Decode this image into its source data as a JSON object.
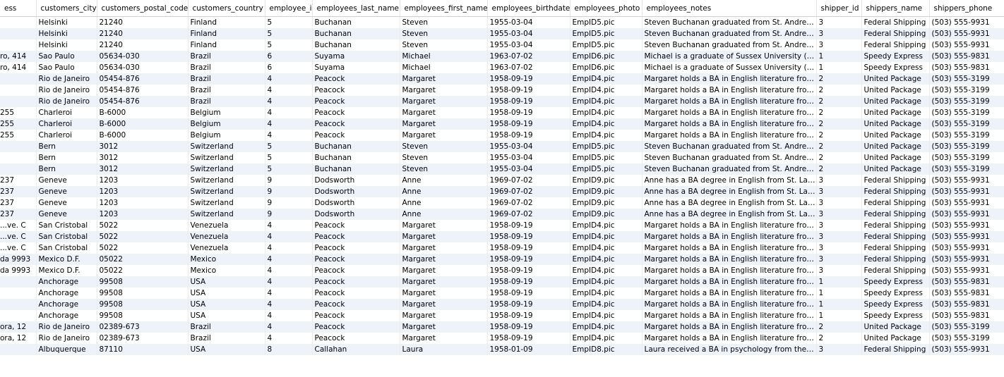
{
  "columns": [
    "ess",
    "customers_city",
    "customers_postal_code",
    "customers_country",
    "employee_id",
    "employees_last_name",
    "employees_first_name",
    "employees_birthdate",
    "employees_photo",
    "employees_notes",
    "shipper_id",
    "shippers_name",
    "shippers_phone"
  ],
  "rows": [
    [
      "",
      "Helsinki",
      "21240",
      "Finland",
      "5",
      "Buchanan",
      "Steven",
      "1955-03-04",
      "EmpID5.pic",
      "Steven Buchanan graduated from St. Andrews ...",
      "3",
      "Federal Shipping",
      "(503) 555-9931"
    ],
    [
      "",
      "Helsinki",
      "21240",
      "Finland",
      "5",
      "Buchanan",
      "Steven",
      "1955-03-04",
      "EmpID5.pic",
      "Steven Buchanan graduated from St. Andrews ...",
      "3",
      "Federal Shipping",
      "(503) 555-9931"
    ],
    [
      "",
      "Helsinki",
      "21240",
      "Finland",
      "5",
      "Buchanan",
      "Steven",
      "1955-03-04",
      "EmpID5.pic",
      "Steven Buchanan graduated from St. Andrews ...",
      "3",
      "Federal Shipping",
      "(503) 555-9931"
    ],
    [
      "ro, 414",
      "Sao Paulo",
      "05634-030",
      "Brazil",
      "6",
      "Suyama",
      "Michael",
      "1963-07-02",
      "EmpID6.pic",
      "Michael is a graduate of Sussex University (MA,...",
      "1",
      "Speedy Express",
      "(503) 555-9831"
    ],
    [
      "ro, 414",
      "Sao Paulo",
      "05634-030",
      "Brazil",
      "6",
      "Suyama",
      "Michael",
      "1963-07-02",
      "EmpID6.pic",
      "Michael is a graduate of Sussex University (MA,...",
      "1",
      "Speedy Express",
      "(503) 555-9831"
    ],
    [
      "",
      "Rio de Janeiro",
      "05454-876",
      "Brazil",
      "4",
      "Peacock",
      "Margaret",
      "1958-09-19",
      "EmpID4.pic",
      "Margaret holds a BA in English literature from C...",
      "2",
      "United Package",
      "(503) 555-3199"
    ],
    [
      "",
      "Rio de Janeiro",
      "05454-876",
      "Brazil",
      "4",
      "Peacock",
      "Margaret",
      "1958-09-19",
      "EmpID4.pic",
      "Margaret holds a BA in English literature from C...",
      "2",
      "United Package",
      "(503) 555-3199"
    ],
    [
      "",
      "Rio de Janeiro",
      "05454-876",
      "Brazil",
      "4",
      "Peacock",
      "Margaret",
      "1958-09-19",
      "EmpID4.pic",
      "Margaret holds a BA in English literature from C...",
      "2",
      "United Package",
      "(503) 555-3199"
    ],
    [
      " 255",
      "Charleroi",
      "B-6000",
      "Belgium",
      "4",
      "Peacock",
      "Margaret",
      "1958-09-19",
      "EmpID4.pic",
      "Margaret holds a BA in English literature from C...",
      "2",
      "United Package",
      "(503) 555-3199"
    ],
    [
      " 255",
      "Charleroi",
      "B-6000",
      "Belgium",
      "4",
      "Peacock",
      "Margaret",
      "1958-09-19",
      "EmpID4.pic",
      "Margaret holds a BA in English literature from C...",
      "2",
      "United Package",
      "(503) 555-3199"
    ],
    [
      " 255",
      "Charleroi",
      "B-6000",
      "Belgium",
      "4",
      "Peacock",
      "Margaret",
      "1958-09-19",
      "EmpID4.pic",
      "Margaret holds a BA in English literature from C...",
      "2",
      "United Package",
      "(503) 555-3199"
    ],
    [
      "",
      "Bern",
      "3012",
      "Switzerland",
      "5",
      "Buchanan",
      "Steven",
      "1955-03-04",
      "EmpID5.pic",
      "Steven Buchanan graduated from St. Andrews ...",
      "2",
      "United Package",
      "(503) 555-3199"
    ],
    [
      "",
      "Bern",
      "3012",
      "Switzerland",
      "5",
      "Buchanan",
      "Steven",
      "1955-03-04",
      "EmpID5.pic",
      "Steven Buchanan graduated from St. Andrews ...",
      "2",
      "United Package",
      "(503) 555-3199"
    ],
    [
      "",
      "Bern",
      "3012",
      "Switzerland",
      "5",
      "Buchanan",
      "Steven",
      "1955-03-04",
      "EmpID5.pic",
      "Steven Buchanan graduated from St. Andrews ...",
      "2",
      "United Package",
      "(503) 555-3199"
    ],
    [
      "237",
      "Geneve",
      "1203",
      "Switzerland",
      "9",
      "Dodsworth",
      "Anne",
      "1969-07-02",
      "EmpID9.pic",
      "Anne has a BA degree in English from St. Lawre...",
      "3",
      "Federal Shipping",
      "(503) 555-9931"
    ],
    [
      "237",
      "Geneve",
      "1203",
      "Switzerland",
      "9",
      "Dodsworth",
      "Anne",
      "1969-07-02",
      "EmpID9.pic",
      "Anne has a BA degree in English from St. Lawre...",
      "3",
      "Federal Shipping",
      "(503) 555-9931"
    ],
    [
      "237",
      "Geneve",
      "1203",
      "Switzerland",
      "9",
      "Dodsworth",
      "Anne",
      "1969-07-02",
      "EmpID9.pic",
      "Anne has a BA degree in English from St. Lawre...",
      "3",
      "Federal Shipping",
      "(503) 555-9931"
    ],
    [
      "237",
      "Geneve",
      "1203",
      "Switzerland",
      "9",
      "Dodsworth",
      "Anne",
      "1969-07-02",
      "EmpID9.pic",
      "Anne has a BA degree in English from St. Lawre...",
      "3",
      "Federal Shipping",
      "(503) 555-9931"
    ],
    [
      "ve. C...",
      "San Cristobal",
      "5022",
      "Venezuela",
      "4",
      "Peacock",
      "Margaret",
      "1958-09-19",
      "EmpID4.pic",
      "Margaret holds a BA in English literature from C...",
      "3",
      "Federal Shipping",
      "(503) 555-9931"
    ],
    [
      "ve. C...",
      "San Cristobal",
      "5022",
      "Venezuela",
      "4",
      "Peacock",
      "Margaret",
      "1958-09-19",
      "EmpID4.pic",
      "Margaret holds a BA in English literature from C...",
      "3",
      "Federal Shipping",
      "(503) 555-9931"
    ],
    [
      "ve. C...",
      "San Cristobal",
      "5022",
      "Venezuela",
      "4",
      "Peacock",
      "Margaret",
      "1958-09-19",
      "EmpID4.pic",
      "Margaret holds a BA in English literature from C...",
      "3",
      "Federal Shipping",
      "(503) 555-9931"
    ],
    [
      "da 9993",
      "Mexico D.F.",
      "05022",
      "Mexico",
      "4",
      "Peacock",
      "Margaret",
      "1958-09-19",
      "EmpID4.pic",
      "Margaret holds a BA in English literature from C...",
      "3",
      "Federal Shipping",
      "(503) 555-9931"
    ],
    [
      "da 9993",
      "Mexico D.F.",
      "05022",
      "Mexico",
      "4",
      "Peacock",
      "Margaret",
      "1958-09-19",
      "EmpID4.pic",
      "Margaret holds a BA in English literature from C...",
      "3",
      "Federal Shipping",
      "(503) 555-9931"
    ],
    [
      "",
      "Anchorage",
      "99508",
      "USA",
      "4",
      "Peacock",
      "Margaret",
      "1958-09-19",
      "EmpID4.pic",
      "Margaret holds a BA in English literature from C...",
      "1",
      "Speedy Express",
      "(503) 555-9831"
    ],
    [
      "",
      "Anchorage",
      "99508",
      "USA",
      "4",
      "Peacock",
      "Margaret",
      "1958-09-19",
      "EmpID4.pic",
      "Margaret holds a BA in English literature from C...",
      "1",
      "Speedy Express",
      "(503) 555-9831"
    ],
    [
      "",
      "Anchorage",
      "99508",
      "USA",
      "4",
      "Peacock",
      "Margaret",
      "1958-09-19",
      "EmpID4.pic",
      "Margaret holds a BA in English literature from C...",
      "1",
      "Speedy Express",
      "(503) 555-9831"
    ],
    [
      "",
      "Anchorage",
      "99508",
      "USA",
      "4",
      "Peacock",
      "Margaret",
      "1958-09-19",
      "EmpID4.pic",
      "Margaret holds a BA in English literature from C...",
      "1",
      "Speedy Express",
      "(503) 555-9831"
    ],
    [
      "ora, 12",
      "Rio de Janeiro",
      "02389-673",
      "Brazil",
      "4",
      "Peacock",
      "Margaret",
      "1958-09-19",
      "EmpID4.pic",
      "Margaret holds a BA in English literature from C...",
      "2",
      "United Package",
      "(503) 555-3199"
    ],
    [
      "ora, 12",
      "Rio de Janeiro",
      "02389-673",
      "Brazil",
      "4",
      "Peacock",
      "Margaret",
      "1958-09-19",
      "EmpID4.pic",
      "Margaret holds a BA in English literature from C...",
      "2",
      "United Package",
      "(503) 555-3199"
    ],
    [
      "",
      "Albuquerque",
      "87110",
      "USA",
      "8",
      "Callahan",
      "Laura",
      "1958-01-09",
      "EmpID8.pic",
      "Laura received a BA in psychology from the Uni...",
      "3",
      "Federal Shipping",
      "(503) 555-9931"
    ]
  ]
}
